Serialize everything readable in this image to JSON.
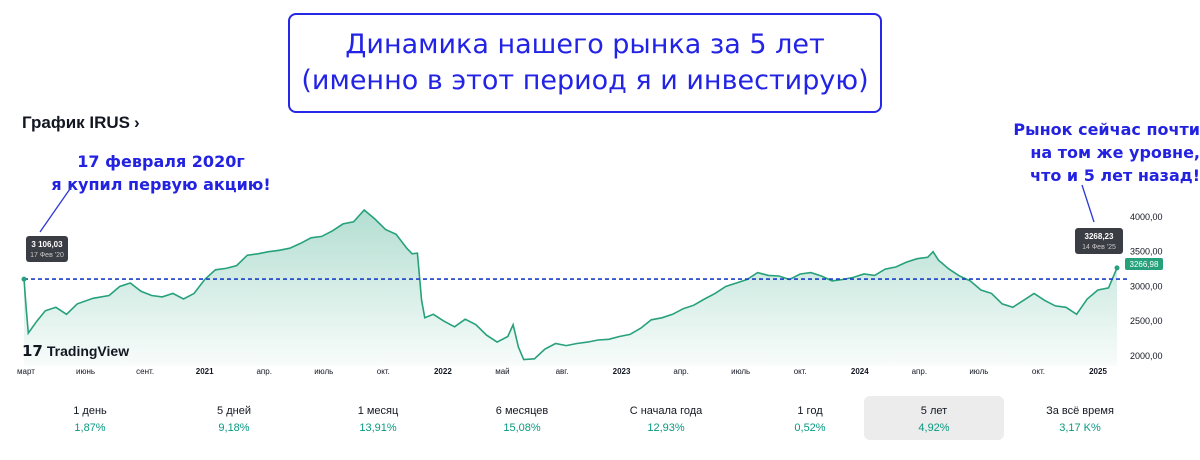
{
  "banner": {
    "line1": "Динамика нашего рынка за 5 лет",
    "line2": "(именно в этот период я и инвестирую)"
  },
  "header": {
    "title": "График IRUS",
    "chevron": "›"
  },
  "annotations": {
    "left": [
      "17 февраля 2020г",
      "я купил первую акцию!"
    ],
    "right": [
      "Рынок сейчас почти",
      "на том же уровне,",
      "что и 5 лет назад!"
    ]
  },
  "tooltips": {
    "start": {
      "value": "3 106,03",
      "date": "17 Фев '20"
    },
    "end": {
      "value": "3268,23",
      "date": "14 Фев '25"
    },
    "last_price": "3266,98"
  },
  "watermark": "TradingView",
  "tabs": [
    {
      "label": "1 день",
      "value": "1,87%"
    },
    {
      "label": "5 дней",
      "value": "9,18%"
    },
    {
      "label": "1 месяц",
      "value": "13,91%"
    },
    {
      "label": "6 месяцев",
      "value": "15,08%"
    },
    {
      "label": "С начала года",
      "value": "12,93%"
    },
    {
      "label": "1 год",
      "value": "0,52%"
    },
    {
      "label": "5 лет",
      "value": "4,92%",
      "active": true
    },
    {
      "label": "За всё время",
      "value": "3,17 K%"
    }
  ],
  "chart_data": {
    "type": "area",
    "ylim": [
      2000,
      4100
    ],
    "y_ticks": [
      "2000,00",
      "2500,00",
      "3000,00",
      "3500,00",
      "4000,00"
    ],
    "x_tick_labels": [
      "март",
      "июнь",
      "сент.",
      "2021",
      "апр.",
      "июль",
      "окт.",
      "2022",
      "май",
      "авг.",
      "2023",
      "апр.",
      "июль",
      "окт.",
      "2024",
      "апр.",
      "июль",
      "окт.",
      "2025"
    ],
    "reference_line": 3106,
    "grid": false,
    "colors": {
      "line": "#26a17b",
      "area": "#26a17b",
      "reference": "#1a3fc9"
    },
    "series": [
      {
        "values": [
          [
            0,
            3106
          ],
          [
            0.02,
            2700
          ],
          [
            0.04,
            2330
          ],
          [
            0.12,
            2500
          ],
          [
            0.2,
            2650
          ],
          [
            0.3,
            2700
          ],
          [
            0.4,
            2600
          ],
          [
            0.5,
            2750
          ],
          [
            0.65,
            2830
          ],
          [
            0.8,
            2870
          ],
          [
            0.9,
            3000
          ],
          [
            1.0,
            3050
          ],
          [
            1.1,
            2930
          ],
          [
            1.2,
            2870
          ],
          [
            1.3,
            2850
          ],
          [
            1.4,
            2900
          ],
          [
            1.5,
            2820
          ],
          [
            1.6,
            2900
          ],
          [
            1.7,
            3100
          ],
          [
            1.8,
            3240
          ],
          [
            1.9,
            3260
          ],
          [
            2.0,
            3300
          ],
          [
            2.1,
            3450
          ],
          [
            2.2,
            3470
          ],
          [
            2.3,
            3500
          ],
          [
            2.4,
            3520
          ],
          [
            2.5,
            3550
          ],
          [
            2.6,
            3620
          ],
          [
            2.7,
            3700
          ],
          [
            2.8,
            3720
          ],
          [
            2.9,
            3800
          ],
          [
            3.0,
            3900
          ],
          [
            3.1,
            3930
          ],
          [
            3.2,
            4100
          ],
          [
            3.3,
            3970
          ],
          [
            3.4,
            3820
          ],
          [
            3.5,
            3750
          ],
          [
            3.6,
            3550
          ],
          [
            3.65,
            3470
          ],
          [
            3.7,
            3480
          ],
          [
            3.74,
            2800
          ],
          [
            3.77,
            2550
          ],
          [
            3.85,
            2600
          ],
          [
            3.95,
            2500
          ],
          [
            4.05,
            2420
          ],
          [
            4.15,
            2530
          ],
          [
            4.25,
            2450
          ],
          [
            4.35,
            2300
          ],
          [
            4.45,
            2200
          ],
          [
            4.55,
            2280
          ],
          [
            4.6,
            2450
          ],
          [
            4.65,
            2130
          ],
          [
            4.7,
            1950
          ],
          [
            4.8,
            1960
          ],
          [
            4.9,
            2100
          ],
          [
            5.0,
            2180
          ],
          [
            5.1,
            2150
          ],
          [
            5.2,
            2180
          ],
          [
            5.3,
            2200
          ],
          [
            5.4,
            2230
          ],
          [
            5.5,
            2240
          ],
          [
            5.6,
            2280
          ],
          [
            5.7,
            2310
          ],
          [
            5.8,
            2400
          ],
          [
            5.9,
            2520
          ],
          [
            6.0,
            2550
          ],
          [
            6.1,
            2600
          ],
          [
            6.2,
            2680
          ],
          [
            6.3,
            2730
          ],
          [
            6.4,
            2820
          ],
          [
            6.5,
            2900
          ],
          [
            6.6,
            3000
          ],
          [
            6.7,
            3050
          ],
          [
            6.8,
            3100
          ],
          [
            6.9,
            3200
          ],
          [
            7.0,
            3160
          ],
          [
            7.1,
            3150
          ],
          [
            7.2,
            3100
          ],
          [
            7.3,
            3180
          ],
          [
            7.4,
            3200
          ],
          [
            7.5,
            3150
          ],
          [
            7.6,
            3080
          ],
          [
            7.7,
            3100
          ],
          [
            7.8,
            3130
          ],
          [
            7.9,
            3180
          ],
          [
            8.0,
            3160
          ],
          [
            8.1,
            3250
          ],
          [
            8.2,
            3280
          ],
          [
            8.3,
            3350
          ],
          [
            8.4,
            3400
          ],
          [
            8.5,
            3420
          ],
          [
            8.55,
            3500
          ],
          [
            8.6,
            3380
          ],
          [
            8.7,
            3250
          ],
          [
            8.8,
            3150
          ],
          [
            8.9,
            3080
          ],
          [
            9.0,
            2950
          ],
          [
            9.1,
            2900
          ],
          [
            9.2,
            2750
          ],
          [
            9.3,
            2700
          ],
          [
            9.4,
            2800
          ],
          [
            9.5,
            2900
          ],
          [
            9.6,
            2800
          ],
          [
            9.7,
            2720
          ],
          [
            9.8,
            2700
          ],
          [
            9.9,
            2600
          ],
          [
            10.0,
            2820
          ],
          [
            10.1,
            2950
          ],
          [
            10.2,
            2980
          ],
          [
            10.28,
            3267
          ]
        ]
      }
    ]
  }
}
